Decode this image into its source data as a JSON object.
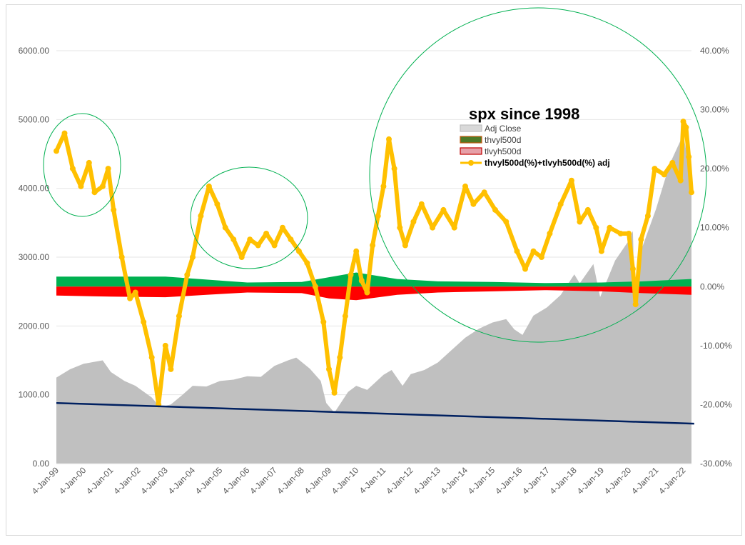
{
  "chart_data": {
    "type": "area",
    "title": "spx since 1998",
    "y_left": {
      "ticks": [
        "0.00",
        "1000.00",
        "2000.00",
        "3000.00",
        "4000.00",
        "5000.00",
        "6000.00"
      ],
      "range": [
        0,
        6000
      ]
    },
    "y_right": {
      "ticks": [
        "-30.00%",
        "-20.00%",
        "-10.00%",
        "0.00%",
        "10.00%",
        "20.00%",
        "30.00%",
        "40.00%"
      ],
      "range": [
        -30,
        40
      ]
    },
    "x_ticks": [
      "4-Jan-99",
      "4-Jan-00",
      "4-Jan-01",
      "4-Jan-02",
      "4-Jan-03",
      "4-Jan-04",
      "4-Jan-05",
      "4-Jan-06",
      "4-Jan-07",
      "4-Jan-08",
      "4-Jan-09",
      "4-Jan-10",
      "4-Jan-11",
      "4-Jan-12",
      "4-Jan-13",
      "4-Jan-14",
      "4-Jan-15",
      "4-Jan-16",
      "4-Jan-17",
      "4-Jan-18",
      "4-Jan-19",
      "4-Jan-20",
      "4-Jan-21",
      "4-Jan-22"
    ],
    "x_range": [
      1999.0,
      2022.3
    ],
    "grid": true,
    "legend_position": "top-right",
    "series": [
      {
        "name": "Adj Close",
        "axis": "left",
        "style": "area",
        "color": "#c0c0c0",
        "points": [
          [
            1999.0,
            1250
          ],
          [
            1999.5,
            1370
          ],
          [
            2000.0,
            1450
          ],
          [
            2000.7,
            1500
          ],
          [
            2001.0,
            1330
          ],
          [
            2001.5,
            1200
          ],
          [
            2001.9,
            1130
          ],
          [
            2002.5,
            960
          ],
          [
            2002.8,
            820
          ],
          [
            2003.2,
            860
          ],
          [
            2003.6,
            990
          ],
          [
            2004.0,
            1130
          ],
          [
            2004.5,
            1120
          ],
          [
            2005.0,
            1200
          ],
          [
            2005.5,
            1220
          ],
          [
            2006.0,
            1270
          ],
          [
            2006.5,
            1260
          ],
          [
            2007.0,
            1420
          ],
          [
            2007.5,
            1500
          ],
          [
            2007.8,
            1540
          ],
          [
            2008.3,
            1380
          ],
          [
            2008.7,
            1200
          ],
          [
            2008.9,
            880
          ],
          [
            2009.2,
            740
          ],
          [
            2009.7,
            1040
          ],
          [
            2010.0,
            1130
          ],
          [
            2010.4,
            1070
          ],
          [
            2011.0,
            1290
          ],
          [
            2011.3,
            1360
          ],
          [
            2011.7,
            1130
          ],
          [
            2012.0,
            1300
          ],
          [
            2012.5,
            1360
          ],
          [
            2013.0,
            1470
          ],
          [
            2013.5,
            1650
          ],
          [
            2014.0,
            1830
          ],
          [
            2014.5,
            1960
          ],
          [
            2015.0,
            2050
          ],
          [
            2015.5,
            2100
          ],
          [
            2015.8,
            1950
          ],
          [
            2016.1,
            1870
          ],
          [
            2016.5,
            2150
          ],
          [
            2017.0,
            2270
          ],
          [
            2017.5,
            2450
          ],
          [
            2018.0,
            2750
          ],
          [
            2018.2,
            2620
          ],
          [
            2018.7,
            2900
          ],
          [
            2018.95,
            2420
          ],
          [
            2019.5,
            2950
          ],
          [
            2020.0,
            3240
          ],
          [
            2020.15,
            3380
          ],
          [
            2020.22,
            2300
          ],
          [
            2020.5,
            3150
          ],
          [
            2021.0,
            3700
          ],
          [
            2021.5,
            4350
          ],
          [
            2022.0,
            4780
          ],
          [
            2022.15,
            4450
          ],
          [
            2022.3,
            4100
          ]
        ]
      },
      {
        "name": "thvyl500d",
        "axis": "right",
        "style": "band-up",
        "color": "#00b050",
        "points": [
          [
            1999.0,
            1.7
          ],
          [
            2001.0,
            1.7
          ],
          [
            2003.0,
            1.7
          ],
          [
            2004.5,
            1.2
          ],
          [
            2006.0,
            0.7
          ],
          [
            2008.0,
            0.8
          ],
          [
            2009.0,
            1.6
          ],
          [
            2010.0,
            2.4
          ],
          [
            2011.5,
            1.3
          ],
          [
            2013.0,
            0.9
          ],
          [
            2015.0,
            0.8
          ],
          [
            2017.0,
            0.6
          ],
          [
            2019.0,
            0.7
          ],
          [
            2020.5,
            0.9
          ],
          [
            2022.3,
            1.3
          ]
        ]
      },
      {
        "name": "tlvyh500d",
        "axis": "right",
        "style": "band-down",
        "color": "#ff0000",
        "points": [
          [
            1999.0,
            -1.5
          ],
          [
            2001.0,
            -1.7
          ],
          [
            2003.0,
            -1.8
          ],
          [
            2004.5,
            -1.4
          ],
          [
            2006.0,
            -1.0
          ],
          [
            2008.0,
            -1.1
          ],
          [
            2009.0,
            -2.0
          ],
          [
            2010.0,
            -2.3
          ],
          [
            2011.5,
            -1.4
          ],
          [
            2013.0,
            -1.0
          ],
          [
            2015.0,
            -0.8
          ],
          [
            2017.0,
            -0.6
          ],
          [
            2019.0,
            -0.8
          ],
          [
            2020.5,
            -1.1
          ],
          [
            2022.3,
            -1.4
          ]
        ]
      },
      {
        "name": "thvyl500d(%)+tlvyh500d(%) adj",
        "axis": "right",
        "style": "line-markers",
        "color": "#ffc000",
        "points": [
          [
            1999.0,
            23
          ],
          [
            1999.3,
            26
          ],
          [
            1999.6,
            20
          ],
          [
            1999.9,
            17
          ],
          [
            2000.2,
            21
          ],
          [
            2000.4,
            16
          ],
          [
            2000.7,
            17
          ],
          [
            2000.9,
            20
          ],
          [
            2001.1,
            13
          ],
          [
            2001.4,
            5
          ],
          [
            2001.7,
            -2
          ],
          [
            2001.9,
            -1
          ],
          [
            2002.2,
            -6
          ],
          [
            2002.5,
            -12
          ],
          [
            2002.75,
            -20
          ],
          [
            2003.0,
            -10
          ],
          [
            2003.2,
            -14
          ],
          [
            2003.5,
            -5
          ],
          [
            2003.8,
            2
          ],
          [
            2004.0,
            5
          ],
          [
            2004.3,
            12
          ],
          [
            2004.6,
            17
          ],
          [
            2004.9,
            14
          ],
          [
            2005.2,
            10
          ],
          [
            2005.5,
            8
          ],
          [
            2005.8,
            5
          ],
          [
            2006.1,
            8
          ],
          [
            2006.4,
            7
          ],
          [
            2006.7,
            9
          ],
          [
            2007.0,
            7
          ],
          [
            2007.3,
            10
          ],
          [
            2007.6,
            8
          ],
          [
            2007.9,
            6
          ],
          [
            2008.2,
            4
          ],
          [
            2008.5,
            0
          ],
          [
            2008.8,
            -6
          ],
          [
            2009.0,
            -14
          ],
          [
            2009.2,
            -18
          ],
          [
            2009.4,
            -12
          ],
          [
            2009.6,
            -5
          ],
          [
            2009.8,
            2
          ],
          [
            2010.0,
            6
          ],
          [
            2010.2,
            1
          ],
          [
            2010.4,
            -1
          ],
          [
            2010.6,
            7
          ],
          [
            2010.8,
            12
          ],
          [
            2011.0,
            17
          ],
          [
            2011.2,
            25
          ],
          [
            2011.4,
            20
          ],
          [
            2011.6,
            10
          ],
          [
            2011.8,
            7
          ],
          [
            2012.1,
            11
          ],
          [
            2012.4,
            14
          ],
          [
            2012.8,
            10
          ],
          [
            2013.2,
            13
          ],
          [
            2013.6,
            10
          ],
          [
            2014.0,
            17
          ],
          [
            2014.3,
            14
          ],
          [
            2014.7,
            16
          ],
          [
            2015.1,
            13
          ],
          [
            2015.5,
            11
          ],
          [
            2015.9,
            6
          ],
          [
            2016.2,
            3
          ],
          [
            2016.5,
            6
          ],
          [
            2016.8,
            5
          ],
          [
            2017.1,
            9
          ],
          [
            2017.5,
            14
          ],
          [
            2017.9,
            18
          ],
          [
            2018.2,
            11
          ],
          [
            2018.5,
            13
          ],
          [
            2018.8,
            10
          ],
          [
            2019.0,
            6
          ],
          [
            2019.3,
            10
          ],
          [
            2019.7,
            9
          ],
          [
            2020.0,
            9
          ],
          [
            2020.15,
            3
          ],
          [
            2020.25,
            -3
          ],
          [
            2020.45,
            8
          ],
          [
            2020.7,
            12
          ],
          [
            2020.95,
            20
          ],
          [
            2021.3,
            19
          ],
          [
            2021.6,
            21
          ],
          [
            2021.9,
            18
          ],
          [
            2022.0,
            28
          ],
          [
            2022.1,
            27
          ],
          [
            2022.2,
            22
          ],
          [
            2022.3,
            16
          ]
        ]
      }
    ],
    "trend_line": {
      "axis": "left",
      "color": "#002060",
      "points": [
        [
          1999.0,
          880
        ],
        [
          2022.4,
          580
        ]
      ]
    }
  }
}
